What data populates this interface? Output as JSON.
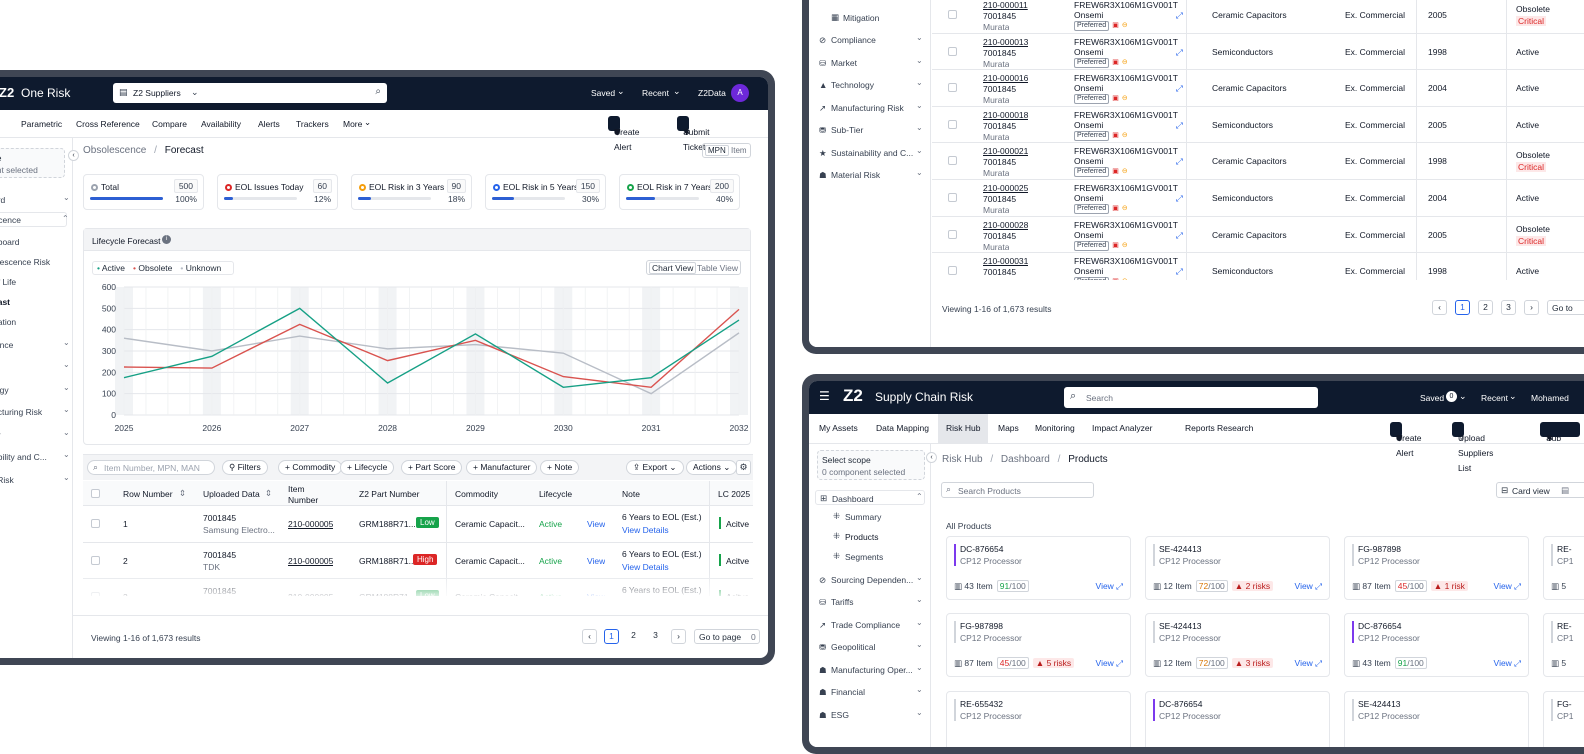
{
  "left": {
    "app_title": "One Risk",
    "scope_selector": "Z2 Suppliers",
    "top_links": [
      "Saved",
      "Recent",
      "Z2Data"
    ],
    "avatar": "A",
    "nav": [
      "Parametric",
      "Cross Reference",
      "Compare",
      "Availability",
      "Alerts",
      "Trackers",
      "More"
    ],
    "create_alert": "Create Alert",
    "submit_ticket": "Submit Ticket",
    "side_scope": [
      "pe",
      "ent selected"
    ],
    "side_items": [
      "ard",
      "scence",
      "hboard",
      "olescence Risk",
      "of Life",
      "cast",
      "gation",
      "iance",
      "",
      "logy",
      "acturing Risk",
      "er",
      "ability and C...",
      "l Risk"
    ],
    "breadcrumb": [
      "Obsolescence",
      "/",
      "Forecast"
    ],
    "mpn_toggle": [
      "MPN",
      "Item"
    ],
    "stats": [
      {
        "label": "Total",
        "value": "500",
        "pct": "100%",
        "fill": 1.0,
        "color": "#9ca3af"
      },
      {
        "label": "EOL Issues Today",
        "value": "60",
        "pct": "12%",
        "fill": 0.12,
        "color": "#dc2626"
      },
      {
        "label": "EOL Risk in 3 Years",
        "value": "90",
        "pct": "18%",
        "fill": 0.18,
        "color": "#f59e0b"
      },
      {
        "label": "EOL Risk in 5 Years",
        "value": "150",
        "pct": "30%",
        "fill": 0.3,
        "color": "#2563eb"
      },
      {
        "label": "EOL Risk in 7 Years",
        "value": "200",
        "pct": "40%",
        "fill": 0.4,
        "color": "#16a34a"
      }
    ],
    "chart_panel_title": "Lifecycle Forecast",
    "chart_view_toggle": [
      "Chart View",
      "Table View"
    ],
    "toolbar": {
      "search_placeholder": "Item Number, MPN, MAN",
      "filters": "Filters",
      "chips": [
        "Commodity",
        "Lifecycle",
        "Part Score",
        "Manufacturer",
        "Note"
      ],
      "export": "Export",
      "actions": "Actions"
    },
    "table_headers": [
      "Row Number",
      "Uploaded Data",
      "Item Number",
      "Z2 Part Number",
      "Commodity",
      "Lifecycle",
      "Note",
      "LC 2025"
    ],
    "rows": [
      {
        "num": "1",
        "up1": "7001845",
        "up2": "Samsung Electro...",
        "item": "210-000005",
        "z2": "GRM188R71...",
        "badge": "Low",
        "commodity": "Ceramic Capacit...",
        "lifecycle": "Active",
        "view": "View",
        "note": "6 Years to EOL (Est.)",
        "details": "View Details",
        "lc": "Acitve"
      },
      {
        "num": "2",
        "up1": "7001845",
        "up2": "TDK",
        "item": "210-000005",
        "z2": "GRM188R71...",
        "badge": "High",
        "commodity": "Ceramic Capacit...",
        "lifecycle": "Active",
        "view": "View",
        "note": "6 Years to EOL (Est.)",
        "details": "View Details",
        "lc": "Acitve"
      },
      {
        "num": "3",
        "up1": "7001845",
        "up2": "Murata",
        "item": "210-000005",
        "z2": "GRM188R71...",
        "badge": "Low",
        "commodity": "Ceramic Capacit...",
        "lifecycle": "Active",
        "view": "View",
        "note": "6 Years to EOL (Est.)",
        "details": "View Details",
        "lc": "Acitve"
      }
    ],
    "footer_text": "Viewing 1-16 of 1,673 results",
    "pages": [
      "1",
      "2",
      "3"
    ],
    "goto": "Go to page",
    "goto_value": "0"
  },
  "chart_data": {
    "type": "line",
    "x": [
      2025,
      2025.75,
      2026,
      2027,
      2028,
      2029,
      2030,
      2031,
      2032
    ],
    "x_ticks": [
      "2025",
      "2026",
      "2027",
      "2028",
      "2029",
      "2030",
      "2031",
      "2032"
    ],
    "y_ticks": [
      "0",
      "100",
      "200",
      "300",
      "400",
      "500",
      "600"
    ],
    "ylim": [
      0,
      600
    ],
    "xlim": [
      2025,
      2032
    ],
    "legend": [
      "Active",
      "Obsolete",
      "Unknown"
    ],
    "series": [
      {
        "name": "Active",
        "color": "#16a085",
        "points": [
          [
            2025,
            175
          ],
          [
            2026,
            275
          ],
          [
            2027,
            500
          ],
          [
            2028,
            150
          ],
          [
            2029,
            380
          ],
          [
            2030,
            130
          ],
          [
            2031,
            175
          ],
          [
            2032,
            445
          ]
        ]
      },
      {
        "name": "Obsolete",
        "color": "#d9534f",
        "points": [
          [
            2025,
            225
          ],
          [
            2026,
            220
          ],
          [
            2027,
            425
          ],
          [
            2028,
            255
          ],
          [
            2029,
            350
          ],
          [
            2030,
            180
          ],
          [
            2031,
            130
          ],
          [
            2032,
            495
          ]
        ]
      },
      {
        "name": "Unknown",
        "color": "#b8bdc6",
        "points": [
          [
            2025,
            360
          ],
          [
            2026,
            300
          ],
          [
            2027,
            370
          ],
          [
            2028,
            310
          ],
          [
            2029,
            330
          ],
          [
            2030,
            290
          ],
          [
            2031,
            100
          ],
          [
            2032,
            385
          ]
        ]
      }
    ]
  },
  "top_right": {
    "side_items": [
      "Mitigation",
      "Compliance",
      "Market",
      "Technology",
      "Manufacturing Risk",
      "Sub-Tier",
      "Sustainability and C...",
      "Material Risk"
    ],
    "rows": [
      {
        "id": "210-000011",
        "num": "7001845",
        "mfr": "Murata",
        "mpn": "FREW6R3X106M1GV001T",
        "supplier": "Onsemi",
        "pref": "Preferred",
        "commodity": "Ceramic Capacitors",
        "type": "Ex. Commercial",
        "year": "2005",
        "status": "Obsolete",
        "crit": "Critical"
      },
      {
        "id": "210-000013",
        "num": "7001845",
        "mfr": "Murata",
        "mpn": "FREW6R3X106M1GV001T",
        "supplier": "Onsemi",
        "pref": "Preferred",
        "commodity": "Semiconductors",
        "type": "Ex. Commercial",
        "year": "1998",
        "status": "Active",
        "crit": ""
      },
      {
        "id": "210-000016",
        "num": "7001845",
        "mfr": "Murata",
        "mpn": "FREW6R3X106M1GV001T",
        "supplier": "Onsemi",
        "pref": "Preferred",
        "commodity": "Ceramic Capacitors",
        "type": "Ex. Commercial",
        "year": "2004",
        "status": "Active",
        "crit": ""
      },
      {
        "id": "210-000018",
        "num": "7001845",
        "mfr": "Murata",
        "mpn": "FREW6R3X106M1GV001T",
        "supplier": "Onsemi",
        "pref": "Preferred",
        "commodity": "Semiconductors",
        "type": "Ex. Commercial",
        "year": "2005",
        "status": "Active",
        "crit": ""
      },
      {
        "id": "210-000021",
        "num": "7001845",
        "mfr": "Murata",
        "mpn": "FREW6R3X106M1GV001T",
        "supplier": "Onsemi",
        "pref": "Preferred",
        "commodity": "Ceramic Capacitors",
        "type": "Ex. Commercial",
        "year": "1998",
        "status": "Obsolete",
        "crit": "Critical"
      },
      {
        "id": "210-000025",
        "num": "7001845",
        "mfr": "Murata",
        "mpn": "FREW6R3X106M1GV001T",
        "supplier": "Onsemi",
        "pref": "Preferred",
        "commodity": "Semiconductors",
        "type": "Ex. Commercial",
        "year": "2004",
        "status": "Active",
        "crit": ""
      },
      {
        "id": "210-000028",
        "num": "7001845",
        "mfr": "Murata",
        "mpn": "FREW6R3X106M1GV001T",
        "supplier": "Onsemi",
        "pref": "Preferred",
        "commodity": "Ceramic Capacitors",
        "type": "Ex. Commercial",
        "year": "2005",
        "status": "Obsolete",
        "crit": "Critical"
      },
      {
        "id": "210-000031",
        "num": "7001845",
        "mfr": "Murata",
        "mpn": "FREW6R3X106M1GV001T",
        "supplier": "Onsemi",
        "pref": "Preferred",
        "commodity": "Semiconductors",
        "type": "Ex. Commercial",
        "year": "1998",
        "status": "Active",
        "crit": ""
      }
    ],
    "footer_text": "Viewing 1-16 of 1,673 results",
    "pages": [
      "1",
      "2",
      "3"
    ],
    "goto": "Go to"
  },
  "bottom_right": {
    "app_title": "Supply Chain Risk",
    "search_placeholder": "Search",
    "saved": "Saved",
    "saved_count": "0",
    "recent": "Recent",
    "user": "Mohamed",
    "nav": [
      "My Assets",
      "Data Mapping",
      "Risk Hub",
      "Maps",
      "Monitoring",
      "Impact Analyzer",
      "Reports",
      "Research"
    ],
    "create_alert": "Create Alert",
    "upload": "Upload Suppliers List",
    "sub_cut": "Sub",
    "scope_title": "Select scope",
    "scope_sub": "0 component selected",
    "side_items": [
      "Dashboard",
      "Summary",
      "Products",
      "Segments",
      "Sourcing Dependen...",
      "Tariffs",
      "Trade Compliance",
      "Geopolitical",
      "Manufacturing Oper...",
      "Financial",
      "ESG"
    ],
    "breadcrumb": [
      "Risk Hub",
      "/",
      "Dashboard",
      "/",
      "Products"
    ],
    "search_products": "Search Products",
    "card_view": "Card view",
    "all_products": "All Products",
    "cards": [
      {
        "name": "DC-876654",
        "sub": "CP12 Processor",
        "items": "43 Item",
        "score": "91",
        "risks": "",
        "accent": "#7c3aed",
        "scorecolor": "#16a34a"
      },
      {
        "name": "SE-424413",
        "sub": "CP12 Processor",
        "items": "12 Item",
        "score": "72",
        "risks": "2 risks",
        "accent": "#d1d5db",
        "scorecolor": "#d97706"
      },
      {
        "name": "FG-987898",
        "sub": "CP12 Processor",
        "items": "87 Item",
        "score": "45",
        "risks": "1 risk",
        "accent": "#d1d5db",
        "scorecolor": "#dc2626"
      },
      {
        "name": "RE-",
        "sub": "CP1",
        "items": "5",
        "score": "",
        "risks": "",
        "accent": "#d1d5db",
        "scorecolor": "#16a34a"
      },
      {
        "name": "FG-987898",
        "sub": "CP12 Processor",
        "items": "87 Item",
        "score": "45",
        "risks": "5 risks",
        "accent": "#d1d5db",
        "scorecolor": "#dc2626"
      },
      {
        "name": "SE-424413",
        "sub": "CP12 Processor",
        "items": "12 Item",
        "score": "72",
        "risks": "3 risks",
        "accent": "#d1d5db",
        "scorecolor": "#d97706"
      },
      {
        "name": "DC-876654",
        "sub": "CP12 Processor",
        "items": "43 Item",
        "score": "91",
        "risks": "",
        "accent": "#7c3aed",
        "scorecolor": "#16a34a"
      },
      {
        "name": "RE-",
        "sub": "CP1",
        "items": "5",
        "score": "",
        "risks": "",
        "accent": "#d1d5db",
        "scorecolor": "#16a34a"
      },
      {
        "name": "RE-655432",
        "sub": "CP12 Processor",
        "items": "",
        "score": "",
        "risks": "",
        "accent": "#d1d5db",
        "scorecolor": "#16a34a"
      },
      {
        "name": "DC-876654",
        "sub": "CP12 Processor",
        "items": "",
        "score": "",
        "risks": "",
        "accent": "#7c3aed",
        "scorecolor": "#16a34a"
      },
      {
        "name": "SE-424413",
        "sub": "CP12 Processor",
        "items": "",
        "score": "",
        "risks": "",
        "accent": "#d1d5db",
        "scorecolor": "#16a34a"
      },
      {
        "name": "FG-",
        "sub": "CP1",
        "items": "",
        "score": "",
        "risks": "",
        "accent": "#d1d5db",
        "scorecolor": "#16a34a"
      }
    ],
    "score_max": "/100",
    "view": "View"
  }
}
